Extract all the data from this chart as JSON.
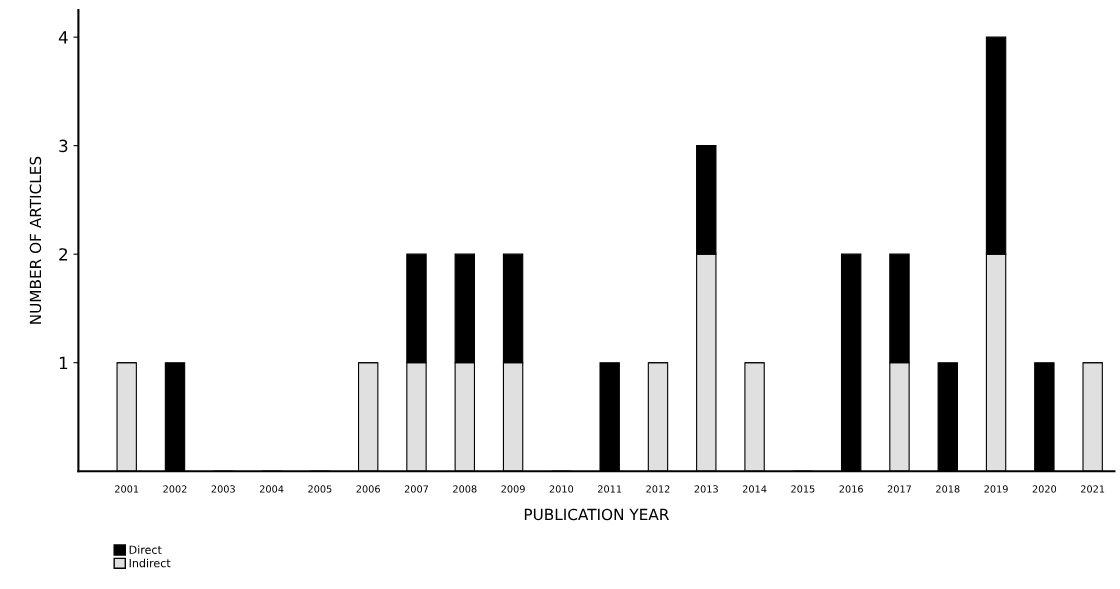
{
  "chart_data": {
    "type": "bar",
    "stacked": true,
    "xlabel": "PUBLICATION YEAR",
    "ylabel": "NUMBER OF ARTICLES",
    "categories": [
      "2001",
      "2002",
      "2003",
      "2004",
      "2005",
      "2006",
      "2007",
      "2008",
      "2009",
      "2010",
      "2011",
      "2012",
      "2013",
      "2014",
      "2015",
      "2016",
      "2017",
      "2018",
      "2019",
      "2020",
      "2021"
    ],
    "series": [
      {
        "name": "Indirect",
        "color": "#e0e0e0",
        "values": [
          1,
          0,
          0,
          0,
          0,
          1,
          1,
          1,
          1,
          0,
          0,
          1,
          2,
          1,
          0,
          0,
          1,
          0,
          2,
          0,
          1
        ]
      },
      {
        "name": "Direct",
        "color": "#000000",
        "values": [
          0,
          1,
          0,
          0,
          0,
          0,
          1,
          1,
          1,
          0,
          1,
          0,
          1,
          0,
          0,
          2,
          1,
          1,
          2,
          1,
          0
        ]
      }
    ],
    "ylim": [
      0,
      4.25
    ],
    "yticks": [
      1,
      2,
      3,
      4
    ],
    "grid": false,
    "legend": "bottom left"
  }
}
